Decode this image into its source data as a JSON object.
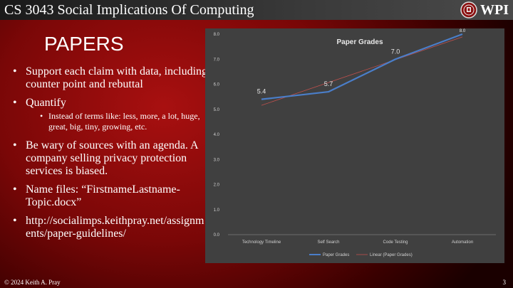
{
  "header": {
    "course_title": "CS 3043 Social Implications Of Computing",
    "logo_text": "WPI"
  },
  "slide": {
    "heading": "PAPERS",
    "bullets": [
      {
        "text": "Support each claim with data, including counter point and rebuttal"
      },
      {
        "text": "Quantify",
        "sub": [
          "Instead of terms like: less, more, a lot, huge, great, big, tiny, growing, etc."
        ]
      },
      {
        "text": "Be wary of sources with an agenda. A company selling privacy protection services is biased."
      },
      {
        "text": "Name files:  “FirstnameLastname-Topic.docx”"
      },
      {
        "text": "http://socialimps.keithpray.net/assignments/paper-guidelines/"
      }
    ]
  },
  "footer": {
    "copyright": "© 2024 Keith A. Pray",
    "page_number": "3"
  },
  "colors": {
    "series_line": "#4a7ec9",
    "trend_line": "#c0504d",
    "chart_bg": "#404040"
  },
  "chart_data": {
    "type": "line",
    "title": "Paper Grades",
    "categories": [
      "Technology Timeline",
      "Self Search",
      "Code Testing",
      "Automation"
    ],
    "series": [
      {
        "name": "Paper Grades",
        "values": [
          5.4,
          5.7,
          7.0,
          8.0
        ],
        "data_labels": [
          "5.4",
          "5.7",
          "7.0",
          "8.0"
        ]
      }
    ],
    "trendline": {
      "name": "Linear (Paper Grades)",
      "type": "linear"
    },
    "ylim": [
      0,
      8
    ],
    "yticks": [
      "0.0",
      "1.0",
      "2.0",
      "3.0",
      "4.0",
      "5.0",
      "6.0",
      "7.0",
      "8.0"
    ],
    "legend": "bottom",
    "grid": false
  }
}
